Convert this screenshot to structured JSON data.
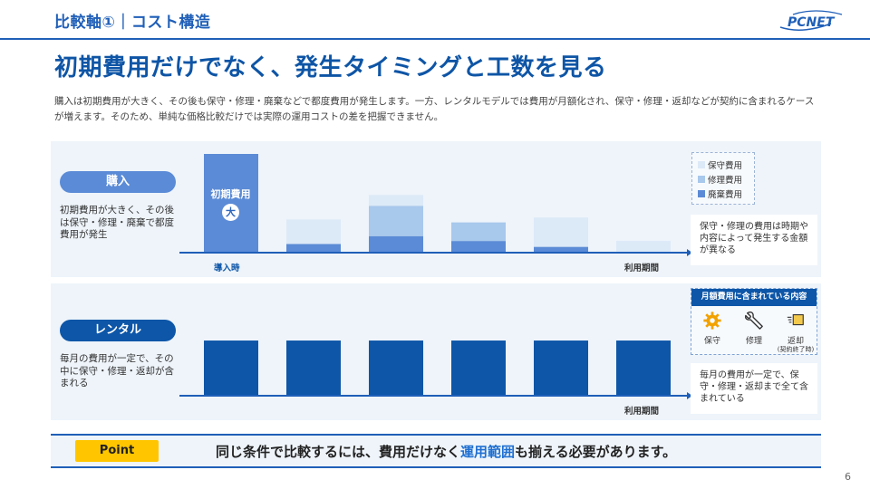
{
  "header": {
    "section_title": "比較軸①｜コスト構造",
    "logo_text": "PCNET"
  },
  "main": {
    "title": "初期費用だけでなく、発生タイミングと工数を見る",
    "description": "購入は初期費用が大きく、その後も保守・修理・廃棄などで都度費用が発生します。一方、レンタルモデルでは費用が月額化され、保守・修理・返却などが契約に含まれるケースが増えます。そのため、単純な価格比較だけでは実際の運用コストの差を把握できません。"
  },
  "purchase": {
    "label": "購入",
    "text": "初期費用が大きく、その後は保守・修理・廃棄で都度費用が発生",
    "initial_label": "初期費用",
    "initial_badge": "大",
    "axis_start": "導入時",
    "axis_end": "利用期間",
    "note": "保守・修理の費用は時期や内容によって発生する金額が異なる"
  },
  "rental": {
    "label": "レンタル",
    "text": "毎月の費用が一定で、その中に保守・修理・返却が含まれる",
    "axis_end": "利用期間",
    "included_title": "月額費用に含まれている内容",
    "included_items": [
      {
        "icon": "gear-icon",
        "label": "保守",
        "sub": ""
      },
      {
        "icon": "wrench-icon",
        "label": "修理",
        "sub": ""
      },
      {
        "icon": "return-box-icon",
        "label": "返却",
        "sub": "(契約終了時)"
      }
    ],
    "note": "毎月の費用が一定で、保守・修理・返却まで全て含まれている"
  },
  "legend": [
    {
      "label": "保守費用",
      "color": "#dce9f7"
    },
    {
      "label": "修理費用",
      "color": "#a8c8ec"
    },
    {
      "label": "廃棄費用",
      "color": "#5b8bd6"
    }
  ],
  "colors": {
    "accent": "#1f5fb8",
    "initial_bar": "#5b8bd6",
    "rental_bar": "#0d56a8",
    "point_badge": "#ffc600",
    "highlight": "#1f6fd1"
  },
  "chart_data": [
    {
      "type": "bar",
      "name": "購入",
      "categories": [
        "導入時",
        "",
        "",
        "",
        "",
        ""
      ],
      "series": [
        {
          "name": "初期費用",
          "values": [
            100,
            0,
            0,
            0,
            0,
            0
          ]
        },
        {
          "name": "廃棄費用",
          "values": [
            0,
            8,
            16,
            11,
            5,
            0
          ]
        },
        {
          "name": "修理費用",
          "values": [
            0,
            0,
            31,
            19,
            0,
            0
          ]
        },
        {
          "name": "保守費用",
          "values": [
            0,
            25,
            11,
            0,
            30,
            11
          ]
        }
      ],
      "ylim": [
        0,
        100
      ]
    },
    {
      "type": "bar",
      "name": "レンタル",
      "categories": [
        "",
        "",
        "",
        "",
        "",
        ""
      ],
      "series": [
        {
          "name": "月額費用",
          "values": [
            55,
            55,
            55,
            55,
            55,
            55
          ]
        }
      ],
      "ylim": [
        0,
        100
      ]
    }
  ],
  "point": {
    "badge": "Point",
    "text_before": "同じ条件で比較するには、費用だけなく",
    "text_highlight": "運用範囲",
    "text_after": "も揃える必要があります。"
  },
  "page_number": "6"
}
